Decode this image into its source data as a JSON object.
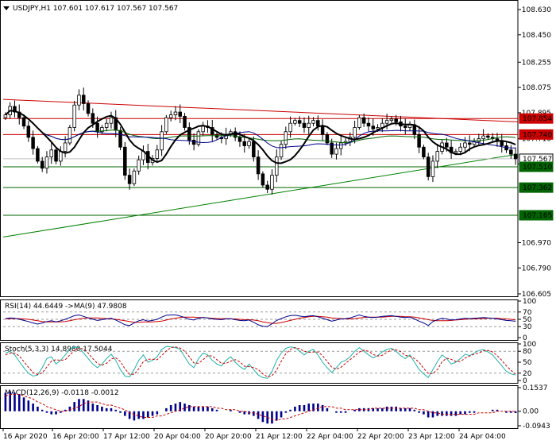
{
  "header": {
    "arrow_icon": "triangle-down-icon",
    "title": "USDJPY,H1  107.601 107.617 107.567 107.567"
  },
  "colors": {
    "bull": "#000000",
    "bear": "#000000",
    "ma_fast": "#000000",
    "ma_mid": "#00008b",
    "ma_slow": "#006400",
    "resistance": "#cc0000",
    "support": "#006400",
    "trend_up": "#008000",
    "trend_down": "#cc0000",
    "rsi": "#00008b",
    "rsi_signal": "#cc0000",
    "stoch_main": "#20b2aa",
    "stoch_signal": "#cc0000",
    "macd_hist": "#00008b",
    "macd_signal": "#cc0000",
    "grid_dash": "#9a9a9a"
  },
  "chart_data": {
    "type": "candlestick",
    "symbol": "USDJPY",
    "timeframe": "H1",
    "title": "USDJPY,H1  107.601 107.617 107.567 107.567",
    "ohlc_last": {
      "open": 107.601,
      "high": 107.617,
      "low": 107.567,
      "close": 107.567
    },
    "ylim": [
      106.605,
      108.63
    ],
    "y_ticks": [
      108.63,
      108.45,
      108.255,
      108.075,
      107.895,
      107.71,
      107.53,
      106.97,
      106.79,
      106.605
    ],
    "x_ticks": [
      "16 Apr 2020",
      "16 Apr 20:00",
      "17 Apr 12:00",
      "20 Apr 04:00",
      "20 Apr 20:00",
      "21 Apr 12:00",
      "22 Apr 04:00",
      "22 Apr 20:00",
      "23 Apr 12:00",
      "24 Apr 04:00"
    ],
    "n_bars": 112,
    "closes": [
      107.88,
      107.94,
      107.9,
      107.86,
      107.8,
      107.72,
      107.64,
      107.55,
      107.5,
      107.58,
      107.63,
      107.55,
      107.62,
      107.68,
      107.79,
      107.95,
      108.02,
      107.96,
      107.89,
      107.82,
      107.76,
      107.79,
      107.82,
      107.86,
      107.77,
      107.65,
      107.45,
      107.39,
      107.48,
      107.56,
      107.62,
      107.54,
      107.57,
      107.63,
      107.76,
      107.86,
      107.88,
      107.9,
      107.87,
      107.79,
      107.7,
      107.67,
      107.76,
      107.8,
      107.79,
      107.74,
      107.72,
      107.71,
      107.74,
      107.76,
      107.72,
      107.69,
      107.66,
      107.69,
      107.58,
      107.46,
      107.38,
      107.35,
      107.45,
      107.58,
      107.67,
      107.76,
      107.82,
      107.84,
      107.82,
      107.79,
      107.82,
      107.84,
      107.8,
      107.74,
      107.68,
      107.6,
      107.64,
      107.68,
      107.69,
      107.72,
      107.79,
      107.86,
      107.82,
      107.8,
      107.78,
      107.79,
      107.82,
      107.84,
      107.85,
      107.83,
      107.8,
      107.79,
      107.81,
      107.74,
      107.65,
      107.58,
      107.44,
      107.55,
      107.62,
      107.68,
      107.65,
      107.61,
      107.62,
      107.65,
      107.68,
      107.67,
      107.69,
      107.71,
      107.73,
      107.72,
      107.71,
      107.69,
      107.66,
      107.63,
      107.6,
      107.567
    ],
    "hline_levels": [
      {
        "label": "107.854",
        "value": 107.854,
        "kind": "resistance"
      },
      {
        "label": "107.740",
        "value": 107.74,
        "kind": "resistance"
      },
      {
        "label": "107.567",
        "value": 107.567,
        "kind": "current"
      },
      {
        "label": "107.510",
        "value": 107.51,
        "kind": "support"
      },
      {
        "label": "107.362",
        "value": 107.362,
        "kind": "support"
      },
      {
        "label": "107.165",
        "value": 107.165,
        "kind": "support"
      }
    ],
    "trendlines": [
      {
        "kind": "down",
        "from": [
          0,
          107.99
        ],
        "to": [
          111,
          107.83
        ]
      },
      {
        "kind": "up",
        "from": [
          0,
          107.01
        ],
        "to": [
          111,
          107.6
        ]
      }
    ],
    "indicators": [
      {
        "name": "rsi",
        "label": "RSI(14) 44.6449  ->MA(9) 47.9808",
        "ylim": [
          0,
          100
        ],
        "y_ticks": [
          100,
          70,
          50,
          30,
          0
        ],
        "levels": [
          70,
          50,
          30
        ],
        "rsi": [
          52,
          54,
          53,
          50,
          47,
          44,
          40,
          37,
          40,
          44,
          46,
          43,
          46,
          50,
          55,
          60,
          62,
          58,
          54,
          50,
          47,
          49,
          51,
          53,
          48,
          42,
          35,
          33,
          40,
          46,
          49,
          45,
          47,
          50,
          56,
          61,
          62,
          62,
          59,
          55,
          50,
          48,
          53,
          55,
          54,
          51,
          50,
          49,
          51,
          52,
          49,
          47,
          46,
          48,
          42,
          35,
          31,
          30,
          38,
          47,
          52,
          57,
          60,
          61,
          59,
          57,
          59,
          60,
          57,
          53,
          49,
          45,
          48,
          51,
          52,
          54,
          58,
          62,
          58,
          56,
          55,
          56,
          58,
          59,
          60,
          58,
          56,
          55,
          56,
          51,
          45,
          40,
          33,
          44,
          49,
          53,
          51,
          48,
          49,
          51,
          53,
          52,
          53,
          54,
          55,
          54,
          53,
          51,
          49,
          47,
          46,
          44.6
        ],
        "ma": [
          51,
          52,
          52,
          52,
          51,
          50,
          48,
          46,
          44,
          43,
          43,
          43,
          43,
          44,
          46,
          49,
          51,
          53,
          54,
          54,
          54,
          53,
          52,
          51,
          50,
          48,
          46,
          44,
          42,
          42,
          43,
          43,
          43,
          44,
          45,
          48,
          51,
          53,
          55,
          56,
          56,
          56,
          55,
          55,
          54,
          53,
          52,
          52,
          52,
          51,
          51,
          50,
          49,
          49,
          48,
          46,
          43,
          41,
          39,
          39,
          41,
          44,
          47,
          50,
          53,
          55,
          57,
          58,
          58,
          57,
          56,
          54,
          53,
          52,
          51,
          51,
          52,
          54,
          55,
          56,
          56,
          56,
          56,
          57,
          58,
          58,
          58,
          57,
          57,
          56,
          54,
          52,
          49,
          47,
          46,
          46,
          46,
          47,
          48,
          49,
          50,
          51,
          51,
          52,
          52,
          53,
          53,
          53,
          52,
          51,
          50,
          47.98
        ]
      },
      {
        "name": "stochastic",
        "label": "Stoch(5,3,3) 14.8980 17.5044",
        "ylim": [
          0,
          100
        ],
        "y_ticks": [
          100,
          80,
          50,
          20,
          0
        ],
        "levels": [
          80,
          20
        ],
        "main": [
          75,
          80,
          70,
          52,
          35,
          20,
          12,
          15,
          35,
          60,
          65,
          45,
          55,
          70,
          85,
          92,
          90,
          75,
          60,
          45,
          35,
          45,
          60,
          72,
          55,
          30,
          12,
          10,
          30,
          55,
          70,
          50,
          55,
          65,
          85,
          93,
          92,
          90,
          85,
          65,
          45,
          35,
          60,
          75,
          70,
          55,
          45,
          40,
          55,
          65,
          50,
          38,
          30,
          45,
          30,
          15,
          8,
          6,
          25,
          55,
          75,
          88,
          92,
          90,
          80,
          70,
          80,
          85,
          70,
          50,
          35,
          22,
          35,
          50,
          55,
          65,
          80,
          90,
          80,
          70,
          62,
          68,
          78,
          85,
          88,
          80,
          68,
          60,
          70,
          50,
          30,
          18,
          8,
          30,
          52,
          70,
          60,
          45,
          50,
          60,
          72,
          68,
          75,
          82,
          85,
          78,
          70,
          55,
          40,
          25,
          18,
          14.9
        ],
        "signal": [
          70,
          75,
          75,
          67,
          52,
          36,
          22,
          16,
          21,
          37,
          53,
          57,
          55,
          57,
          70,
          82,
          89,
          86,
          75,
          60,
          47,
          42,
          47,
          59,
          62,
          52,
          32,
          17,
          17,
          32,
          52,
          58,
          58,
          57,
          68,
          81,
          90,
          92,
          89,
          80,
          65,
          48,
          47,
          57,
          68,
          67,
          57,
          47,
          47,
          53,
          57,
          51,
          39,
          38,
          35,
          30,
          18,
          10,
          13,
          29,
          52,
          73,
          85,
          90,
          87,
          80,
          77,
          78,
          78,
          68,
          52,
          36,
          31,
          36,
          47,
          57,
          67,
          78,
          83,
          80,
          71,
          67,
          69,
          77,
          84,
          84,
          79,
          69,
          66,
          60,
          50,
          33,
          19,
          19,
          30,
          51,
          61,
          58,
          52,
          52,
          61,
          67,
          72,
          75,
          81,
          82,
          78,
          68,
          55,
          40,
          28,
          17.5
        ]
      },
      {
        "name": "macd",
        "label": "MACD(12,26,9) -0.0118 -0.0012",
        "ylim": [
          -0.0943,
          0.1537
        ],
        "y_ticks": [
          0.1537,
          0.0,
          -0.0943
        ],
        "y_tick_labels": [
          "0.1537",
          "0.00",
          "-0.0943"
        ],
        "hist": [
          0.12,
          0.13,
          0.12,
          0.11,
          0.09,
          0.07,
          0.05,
          0.03,
          0.01,
          -0.01,
          -0.02,
          -0.02,
          -0.01,
          0.01,
          0.03,
          0.06,
          0.08,
          0.08,
          0.07,
          0.05,
          0.04,
          0.03,
          0.02,
          0.02,
          0.01,
          -0.01,
          -0.03,
          -0.05,
          -0.06,
          -0.05,
          -0.05,
          -0.04,
          -0.03,
          -0.02,
          0.0,
          0.02,
          0.04,
          0.05,
          0.06,
          0.05,
          0.04,
          0.03,
          0.03,
          0.03,
          0.03,
          0.02,
          0.01,
          0.0,
          0.0,
          0.01,
          0.0,
          -0.01,
          -0.02,
          -0.02,
          -0.03,
          -0.05,
          -0.07,
          -0.08,
          -0.08,
          -0.06,
          -0.04,
          -0.01,
          0.01,
          0.03,
          0.04,
          0.04,
          0.05,
          0.05,
          0.05,
          0.04,
          0.02,
          0.0,
          -0.01,
          -0.01,
          -0.01,
          0.0,
          0.01,
          0.02,
          0.02,
          0.02,
          0.02,
          0.02,
          0.02,
          0.03,
          0.03,
          0.03,
          0.02,
          0.02,
          0.02,
          0.01,
          -0.01,
          -0.02,
          -0.04,
          -0.04,
          -0.03,
          -0.03,
          -0.03,
          -0.03,
          -0.03,
          -0.02,
          -0.02,
          -0.01,
          -0.01,
          0.0,
          0.0,
          0.0,
          0.01,
          0.01,
          0.0,
          -0.01,
          -0.01,
          -0.0118
        ],
        "signal": [
          0.1,
          0.11,
          0.11,
          0.11,
          0.1,
          0.09,
          0.08,
          0.06,
          0.05,
          0.03,
          0.02,
          0.01,
          0.0,
          0.0,
          0.01,
          0.02,
          0.03,
          0.05,
          0.06,
          0.06,
          0.06,
          0.05,
          0.04,
          0.04,
          0.03,
          0.02,
          0.01,
          -0.01,
          -0.02,
          -0.03,
          -0.04,
          -0.04,
          -0.04,
          -0.03,
          -0.03,
          -0.02,
          -0.01,
          0.0,
          0.01,
          0.02,
          0.03,
          0.03,
          0.03,
          0.03,
          0.03,
          0.03,
          0.02,
          0.02,
          0.01,
          0.01,
          0.01,
          0.0,
          0.0,
          -0.01,
          -0.01,
          -0.02,
          -0.03,
          -0.04,
          -0.05,
          -0.06,
          -0.05,
          -0.05,
          -0.04,
          -0.03,
          -0.02,
          -0.01,
          0.0,
          0.01,
          0.02,
          0.03,
          0.03,
          0.03,
          0.02,
          0.02,
          0.01,
          0.01,
          0.01,
          0.01,
          0.01,
          0.01,
          0.02,
          0.02,
          0.02,
          0.02,
          0.02,
          0.02,
          0.02,
          0.02,
          0.02,
          0.02,
          0.01,
          0.01,
          0.0,
          -0.01,
          -0.01,
          -0.02,
          -0.02,
          -0.02,
          -0.02,
          -0.02,
          -0.02,
          -0.02,
          -0.02,
          -0.01,
          -0.01,
          -0.01,
          -0.01,
          0.0,
          0.0,
          0.0,
          0.0,
          -0.0012
        ]
      }
    ]
  }
}
